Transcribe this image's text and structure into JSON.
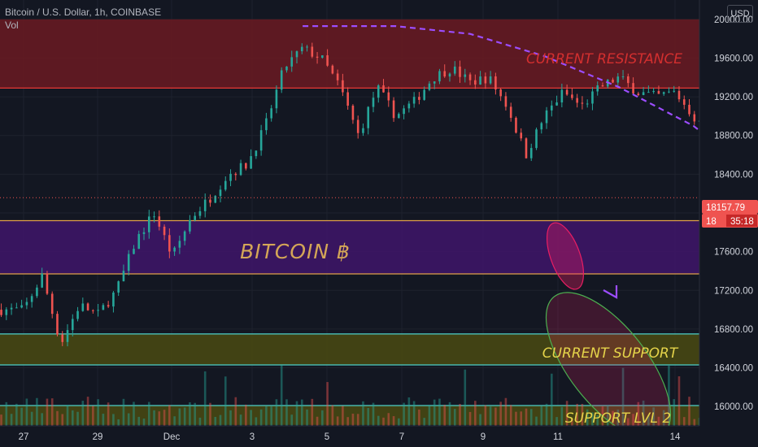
{
  "header": {
    "symbol_line": "Bitcoin / U.S. Dollar, 1h, COINBASE",
    "indicator": "Vol",
    "currency_button": "USD"
  },
  "price_tags": {
    "last_price": "18157.79",
    "countdown_prefix": "18",
    "countdown": "35:18"
  },
  "colors": {
    "background": "#131722",
    "up_candle": "#26a69a",
    "down_candle": "#ef5350",
    "resistance_zone": "#6b1a22",
    "bitcoin_zone": "#3d1566",
    "support_zone": "#4a4a12",
    "support2_zone": "#4a4a12",
    "forecast_arc": "#9c4dff",
    "ellipse_pink": "#e91e63",
    "ellipse_green": "#4caf50"
  },
  "chart_data": {
    "type": "candlestick",
    "x_ticks": [
      "27",
      "29",
      "Dec",
      "3",
      "5",
      "7",
      "9",
      "11",
      "14"
    ],
    "y_ticks": [
      "16000.00",
      "16400.00",
      "16800.00",
      "17200.00",
      "17600.00",
      "18000.00",
      "18400.00",
      "18800.00",
      "19200.00",
      "19600.00",
      "20000.00"
    ],
    "ylim": [
      15800,
      20200
    ],
    "last_price": 18157.79,
    "price_path": [
      [
        0,
        17000
      ],
      [
        1.5,
        17350
      ],
      [
        3,
        16650
      ],
      [
        4.5,
        17050
      ],
      [
        6,
        16950
      ],
      [
        7.5,
        17200
      ],
      [
        9,
        17700
      ],
      [
        10.5,
        18000
      ],
      [
        12,
        17550
      ],
      [
        13.5,
        17950
      ],
      [
        15,
        18150
      ],
      [
        16.5,
        18400
      ],
      [
        18,
        18500
      ],
      [
        19.5,
        18900
      ],
      [
        21,
        19500
      ],
      [
        22.5,
        19700
      ],
      [
        24,
        19600
      ],
      [
        25.5,
        19300
      ],
      [
        27,
        18800
      ],
      [
        28.5,
        19300
      ],
      [
        30,
        19000
      ],
      [
        31.5,
        19150
      ],
      [
        33,
        19400
      ],
      [
        34.5,
        19500
      ],
      [
        36,
        19350
      ],
      [
        37.5,
        19400
      ],
      [
        39,
        19100
      ],
      [
        40.5,
        18600
      ],
      [
        42,
        19000
      ],
      [
        43.5,
        19250
      ],
      [
        45,
        19100
      ],
      [
        46.5,
        19300
      ],
      [
        48,
        19400
      ],
      [
        49.5,
        19250
      ],
      [
        51,
        19200
      ],
      [
        52.5,
        19250
      ],
      [
        54,
        19000
      ],
      [
        55.5,
        18750
      ],
      [
        57,
        18500
      ],
      [
        58.5,
        18200
      ],
      [
        60,
        18050
      ],
      [
        61.5,
        18400
      ],
      [
        63,
        18450
      ],
      [
        64.5,
        18300
      ],
      [
        66,
        18150
      ]
    ],
    "forecast_arc": [
      [
        22.5,
        19930
      ],
      [
        30,
        19930
      ],
      [
        36,
        19850
      ],
      [
        42,
        19620
      ],
      [
        48,
        19300
      ],
      [
        54,
        18900
      ],
      [
        60,
        18300
      ],
      [
        66,
        17700
      ],
      [
        72,
        17200
      ]
    ],
    "zones": [
      {
        "name": "resistance",
        "label": "CURRENT RESISTANCE",
        "from": 19290,
        "to": 20000
      },
      {
        "name": "bitcoin",
        "label": "BITCOIN ฿",
        "from": 17370,
        "to": 17920
      },
      {
        "name": "support",
        "label": "CURRENT SUPPORT",
        "from": 16430,
        "to": 16750
      },
      {
        "name": "support2",
        "label": "SUPPORT LVL 2",
        "from": 15810,
        "to": 16010
      }
    ]
  }
}
